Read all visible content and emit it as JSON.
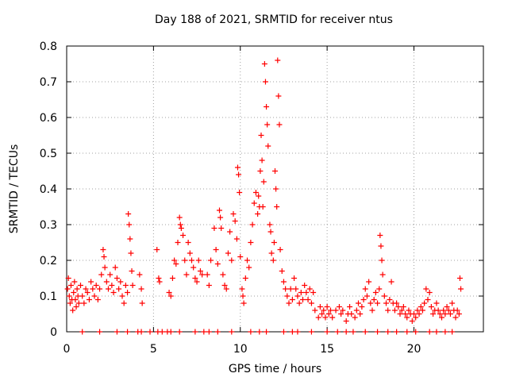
{
  "chart_data": {
    "type": "scatter",
    "title": "Day 188 of 2021, SRMTID for receiver ntus",
    "xlabel": "GPS time / hours",
    "ylabel": "SRMTID / TECUs",
    "xlim": [
      0,
      24
    ],
    "ylim": [
      0,
      0.8
    ],
    "xticks": [
      0,
      5,
      10,
      15,
      20
    ],
    "yticks": [
      0,
      0.1,
      0.2,
      0.3,
      0.4,
      0.5,
      0.6,
      0.7,
      0.8
    ],
    "xtick_labels": [
      "0",
      "5",
      "10",
      "15",
      "20"
    ],
    "ytick_labels": [
      "0",
      "0.1",
      "0.2",
      "0.3",
      "0.4",
      "0.5",
      "0.6",
      "0.7",
      "0.8"
    ],
    "grid": true,
    "marker": "plus",
    "color": "#ff0000",
    "series": [
      {
        "name": "SRMTID",
        "points": [
          [
            0.05,
            0.12
          ],
          [
            0.1,
            0.15
          ],
          [
            0.15,
            0.1
          ],
          [
            0.2,
            0.08
          ],
          [
            0.25,
            0.13
          ],
          [
            0.3,
            0.09
          ],
          [
            0.35,
            0.06
          ],
          [
            0.4,
            0.11
          ],
          [
            0.45,
            0.14
          ],
          [
            0.5,
            0.09
          ],
          [
            0.55,
            0.07
          ],
          [
            0.6,
            0.12
          ],
          [
            0.65,
            0.1
          ],
          [
            0.7,
            0.08
          ],
          [
            0.8,
            0.13
          ],
          [
            0.9,
            0.1
          ],
          [
            1.0,
            0.08
          ],
          [
            1.1,
            0.12
          ],
          [
            1.2,
            0.11
          ],
          [
            1.3,
            0.09
          ],
          [
            1.4,
            0.14
          ],
          [
            1.5,
            0.12
          ],
          [
            1.6,
            0.1
          ],
          [
            1.7,
            0.13
          ],
          [
            1.8,
            0.09
          ],
          [
            1.9,
            0.12
          ],
          [
            2.0,
            0.16
          ],
          [
            2.1,
            0.23
          ],
          [
            2.15,
            0.21
          ],
          [
            2.2,
            0.18
          ],
          [
            2.3,
            0.14
          ],
          [
            2.4,
            0.12
          ],
          [
            2.5,
            0.16
          ],
          [
            2.6,
            0.13
          ],
          [
            2.7,
            0.11
          ],
          [
            2.8,
            0.18
          ],
          [
            2.9,
            0.15
          ],
          [
            3.0,
            0.12
          ],
          [
            3.1,
            0.14
          ],
          [
            3.2,
            0.1
          ],
          [
            3.3,
            0.08
          ],
          [
            3.4,
            0.13
          ],
          [
            3.5,
            0.11
          ],
          [
            3.55,
            0.33
          ],
          [
            3.6,
            0.3
          ],
          [
            3.65,
            0.26
          ],
          [
            3.7,
            0.22
          ],
          [
            3.75,
            0.17
          ],
          [
            3.8,
            0.13
          ],
          [
            4.2,
            0.16
          ],
          [
            4.3,
            0.12
          ],
          [
            4.35,
            0.08
          ],
          [
            5.2,
            0.23
          ],
          [
            5.3,
            0.15
          ],
          [
            5.35,
            0.14
          ],
          [
            5.9,
            0.11
          ],
          [
            6.0,
            0.1
          ],
          [
            6.1,
            0.15
          ],
          [
            6.2,
            0.2
          ],
          [
            6.3,
            0.19
          ],
          [
            6.4,
            0.25
          ],
          [
            6.5,
            0.32
          ],
          [
            6.55,
            0.3
          ],
          [
            6.6,
            0.29
          ],
          [
            6.7,
            0.27
          ],
          [
            6.8,
            0.2
          ],
          [
            6.9,
            0.16
          ],
          [
            7.0,
            0.25
          ],
          [
            7.1,
            0.22
          ],
          [
            7.2,
            0.2
          ],
          [
            7.3,
            0.18
          ],
          [
            7.4,
            0.15
          ],
          [
            7.5,
            0.14
          ],
          [
            7.6,
            0.2
          ],
          [
            7.7,
            0.17
          ],
          [
            7.8,
            0.16
          ],
          [
            8.1,
            0.16
          ],
          [
            8.2,
            0.13
          ],
          [
            8.3,
            0.2
          ],
          [
            8.5,
            0.29
          ],
          [
            8.6,
            0.23
          ],
          [
            8.7,
            0.19
          ],
          [
            8.8,
            0.34
          ],
          [
            8.85,
            0.32
          ],
          [
            8.9,
            0.29
          ],
          [
            9.0,
            0.16
          ],
          [
            9.1,
            0.13
          ],
          [
            9.2,
            0.12
          ],
          [
            9.3,
            0.22
          ],
          [
            9.4,
            0.28
          ],
          [
            9.5,
            0.2
          ],
          [
            9.6,
            0.33
          ],
          [
            9.7,
            0.31
          ],
          [
            9.8,
            0.26
          ],
          [
            9.85,
            0.46
          ],
          [
            9.9,
            0.44
          ],
          [
            9.95,
            0.39
          ],
          [
            10.0,
            0.21
          ],
          [
            10.1,
            0.12
          ],
          [
            10.15,
            0.1
          ],
          [
            10.2,
            0.08
          ],
          [
            10.3,
            0.15
          ],
          [
            10.4,
            0.2
          ],
          [
            10.5,
            0.18
          ],
          [
            10.6,
            0.25
          ],
          [
            10.7,
            0.3
          ],
          [
            10.8,
            0.36
          ],
          [
            10.9,
            0.39
          ],
          [
            11.0,
            0.33
          ],
          [
            11.05,
            0.38
          ],
          [
            11.1,
            0.35
          ],
          [
            11.15,
            0.45
          ],
          [
            11.2,
            0.55
          ],
          [
            11.25,
            0.48
          ],
          [
            11.3,
            0.35
          ],
          [
            11.35,
            0.42
          ],
          [
            11.4,
            0.75
          ],
          [
            11.45,
            0.7
          ],
          [
            11.5,
            0.63
          ],
          [
            11.55,
            0.58
          ],
          [
            11.6,
            0.52
          ],
          [
            11.7,
            0.3
          ],
          [
            11.75,
            0.28
          ],
          [
            11.8,
            0.22
          ],
          [
            11.9,
            0.2
          ],
          [
            11.95,
            0.25
          ],
          [
            12.0,
            0.45
          ],
          [
            12.05,
            0.4
          ],
          [
            12.1,
            0.35
          ],
          [
            12.15,
            0.76
          ],
          [
            12.2,
            0.66
          ],
          [
            12.25,
            0.58
          ],
          [
            12.3,
            0.23
          ],
          [
            12.4,
            0.17
          ],
          [
            12.5,
            0.14
          ],
          [
            12.6,
            0.12
          ],
          [
            12.7,
            0.1
          ],
          [
            12.8,
            0.08
          ],
          [
            12.9,
            0.12
          ],
          [
            13.0,
            0.09
          ],
          [
            13.1,
            0.15
          ],
          [
            13.2,
            0.12
          ],
          [
            13.3,
            0.1
          ],
          [
            13.4,
            0.08
          ],
          [
            13.5,
            0.11
          ],
          [
            13.6,
            0.09
          ],
          [
            13.7,
            0.13
          ],
          [
            13.8,
            0.11
          ],
          [
            13.9,
            0.09
          ],
          [
            14.0,
            0.12
          ],
          [
            14.1,
            0.08
          ],
          [
            14.2,
            0.11
          ],
          [
            14.3,
            0.06
          ],
          [
            14.5,
            0.04
          ],
          [
            14.6,
            0.07
          ],
          [
            14.7,
            0.05
          ],
          [
            14.8,
            0.06
          ],
          [
            14.9,
            0.04
          ],
          [
            15.0,
            0.07
          ],
          [
            15.1,
            0.05
          ],
          [
            15.2,
            0.06
          ],
          [
            15.3,
            0.04
          ],
          [
            15.5,
            0.06
          ],
          [
            15.7,
            0.07
          ],
          [
            15.8,
            0.05
          ],
          [
            15.9,
            0.06
          ],
          [
            16.1,
            0.03
          ],
          [
            16.2,
            0.05
          ],
          [
            16.3,
            0.07
          ],
          [
            16.4,
            0.05
          ],
          [
            16.6,
            0.04
          ],
          [
            16.7,
            0.06
          ],
          [
            16.8,
            0.08
          ],
          [
            16.9,
            0.05
          ],
          [
            17.0,
            0.07
          ],
          [
            17.1,
            0.09
          ],
          [
            17.2,
            0.12
          ],
          [
            17.3,
            0.1
          ],
          [
            17.4,
            0.14
          ],
          [
            17.5,
            0.08
          ],
          [
            17.6,
            0.06
          ],
          [
            17.7,
            0.09
          ],
          [
            17.8,
            0.11
          ],
          [
            17.9,
            0.08
          ],
          [
            18.0,
            0.12
          ],
          [
            18.05,
            0.27
          ],
          [
            18.1,
            0.24
          ],
          [
            18.15,
            0.2
          ],
          [
            18.2,
            0.16
          ],
          [
            18.3,
            0.1
          ],
          [
            18.4,
            0.08
          ],
          [
            18.5,
            0.06
          ],
          [
            18.6,
            0.09
          ],
          [
            18.7,
            0.14
          ],
          [
            18.8,
            0.08
          ],
          [
            18.9,
            0.06
          ],
          [
            19.0,
            0.08
          ],
          [
            19.1,
            0.07
          ],
          [
            19.2,
            0.05
          ],
          [
            19.3,
            0.06
          ],
          [
            19.4,
            0.07
          ],
          [
            19.5,
            0.05
          ],
          [
            19.6,
            0.04
          ],
          [
            19.7,
            0.06
          ],
          [
            19.8,
            0.05
          ],
          [
            19.9,
            0.03
          ],
          [
            20.0,
            0.05
          ],
          [
            20.1,
            0.04
          ],
          [
            20.2,
            0.06
          ],
          [
            20.3,
            0.05
          ],
          [
            20.4,
            0.07
          ],
          [
            20.5,
            0.06
          ],
          [
            20.6,
            0.08
          ],
          [
            20.7,
            0.12
          ],
          [
            20.8,
            0.09
          ],
          [
            20.9,
            0.11
          ],
          [
            21.0,
            0.07
          ],
          [
            21.1,
            0.05
          ],
          [
            21.2,
            0.06
          ],
          [
            21.3,
            0.08
          ],
          [
            21.4,
            0.06
          ],
          [
            21.5,
            0.05
          ],
          [
            21.6,
            0.04
          ],
          [
            21.7,
            0.06
          ],
          [
            21.8,
            0.05
          ],
          [
            21.9,
            0.07
          ],
          [
            22.0,
            0.06
          ],
          [
            22.1,
            0.05
          ],
          [
            22.2,
            0.08
          ],
          [
            22.3,
            0.06
          ],
          [
            22.4,
            0.04
          ],
          [
            22.5,
            0.06
          ],
          [
            22.6,
            0.05
          ],
          [
            22.65,
            0.15
          ],
          [
            22.7,
            0.12
          ],
          [
            0.9,
            0.0
          ],
          [
            1.9,
            0.0
          ],
          [
            2.9,
            0.0
          ],
          [
            3.5,
            0.0
          ],
          [
            4.1,
            0.0
          ],
          [
            4.3,
            0.0
          ],
          [
            4.8,
            0.0
          ],
          [
            5.25,
            0.0
          ],
          [
            5.5,
            0.0
          ],
          [
            5.8,
            0.0
          ],
          [
            6.0,
            0.0
          ],
          [
            6.5,
            0.0
          ],
          [
            7.4,
            0.0
          ],
          [
            7.9,
            0.0
          ],
          [
            8.2,
            0.0
          ],
          [
            8.7,
            0.0
          ],
          [
            9.5,
            0.0
          ],
          [
            10.6,
            0.0
          ],
          [
            11.1,
            0.0
          ],
          [
            11.5,
            0.0
          ],
          [
            12.5,
            0.0
          ],
          [
            13.0,
            0.0
          ],
          [
            13.3,
            0.0
          ],
          [
            14.1,
            0.0
          ],
          [
            15.0,
            0.0
          ],
          [
            15.6,
            0.0
          ],
          [
            16.1,
            0.0
          ],
          [
            16.5,
            0.0
          ],
          [
            17.2,
            0.0
          ],
          [
            17.9,
            0.0
          ],
          [
            18.5,
            0.0
          ],
          [
            19.0,
            0.0
          ],
          [
            19.6,
            0.0
          ],
          [
            20.1,
            0.0
          ],
          [
            20.9,
            0.0
          ],
          [
            21.3,
            0.0
          ],
          [
            21.8,
            0.0
          ],
          [
            22.2,
            0.0
          ]
        ]
      }
    ]
  }
}
